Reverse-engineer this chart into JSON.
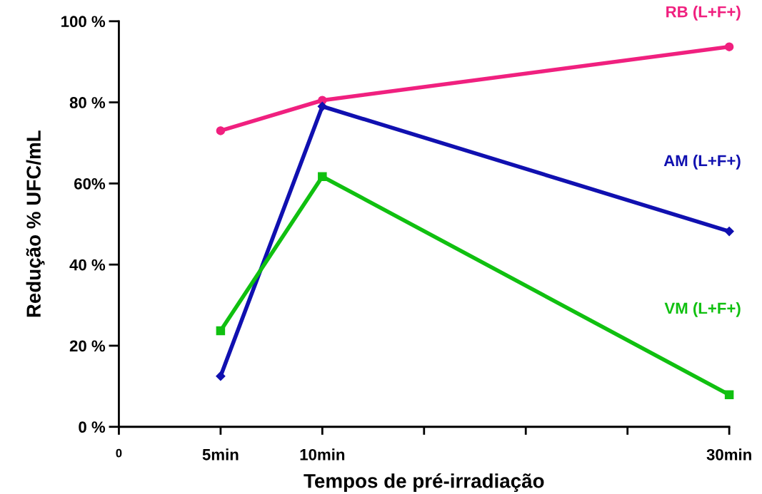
{
  "chart_data": {
    "type": "line",
    "xlabel": "Tempos de pré-irradiação",
    "ylabel": "Redução % UFC/mL",
    "categories": [
      "0",
      "5min",
      "10min",
      null,
      null,
      null,
      "30min"
    ],
    "ylim": [
      0,
      100
    ],
    "yticks": [
      {
        "value": 0,
        "label": "0 %"
      },
      {
        "value": 20,
        "label": "20 %"
      },
      {
        "value": 40,
        "label": "40 %"
      },
      {
        "value": 60,
        "label": "60%"
      },
      {
        "value": 80,
        "label": "80 %"
      },
      {
        "value": 100,
        "label": "100 %"
      }
    ],
    "grid": false,
    "legend": false,
    "line_style": "solid",
    "series": [
      {
        "name": "RB (L+F+)",
        "color": "#f0207f",
        "marker": "circle",
        "values": [
          null,
          73,
          80.5,
          null,
          null,
          null,
          93.7
        ]
      },
      {
        "name": "AM (L+F+)",
        "color": "#1010b0",
        "marker": "diamond",
        "values": [
          null,
          12.5,
          79,
          null,
          null,
          null,
          48.2
        ]
      },
      {
        "name": "VM (L+F+)",
        "color": "#10c010",
        "marker": "square",
        "values": [
          null,
          23.7,
          61.7,
          null,
          null,
          null,
          7.9
        ]
      }
    ]
  }
}
